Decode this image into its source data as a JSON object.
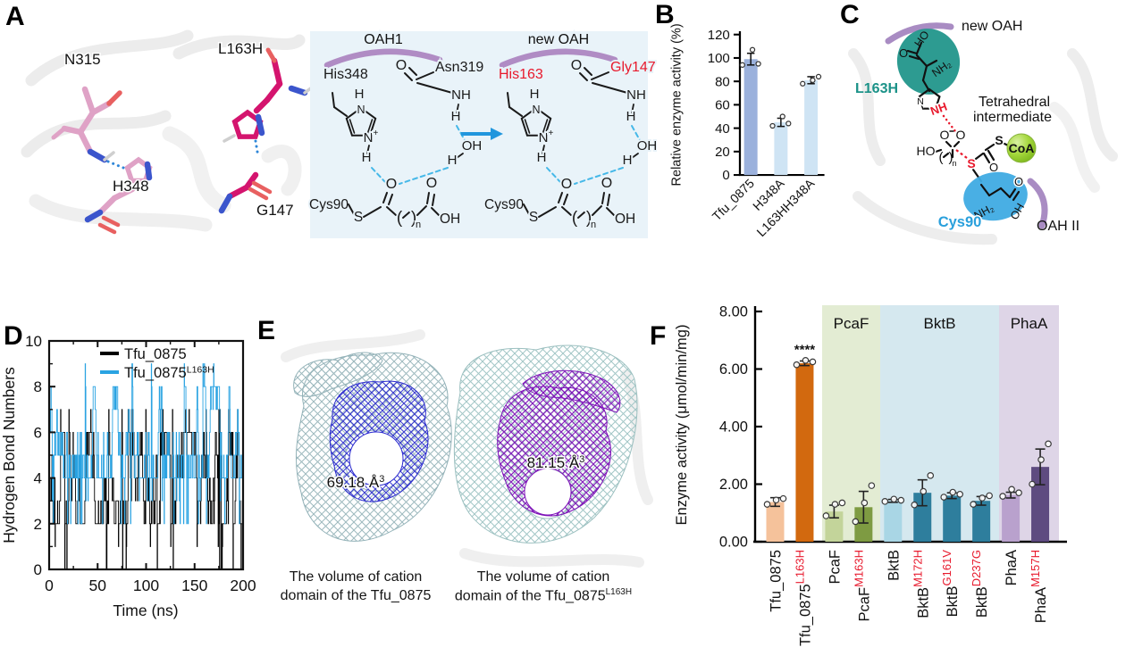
{
  "panels": {
    "a": "A",
    "b": "B",
    "c": "C",
    "d": "D",
    "e": "E",
    "f": "F"
  },
  "panel_a": {
    "structure": {
      "n315": "N315",
      "h348": "H348",
      "l163h": "L163H",
      "g147": "G147"
    },
    "scheme": {
      "bg": "#e9f3f9",
      "arc_color": "#b08cc4",
      "arrow_color": "#2196dd",
      "hbond_color": "#45b8e8",
      "left": {
        "arc_label": "OAH1",
        "res1": "His348",
        "res2": "Asn319",
        "res_color": "#1a1a1a"
      },
      "right": {
        "arc_label": "new OAH",
        "res1": "His163",
        "res2": "Gly147",
        "res_color": "#e8192c"
      },
      "atoms": {
        "o": "O",
        "nh": "NH",
        "h": "H",
        "oh": "OH",
        "n": "N",
        "plus": "+",
        "cys": "Cys90",
        "s": "S",
        "n_sub": "n"
      }
    }
  },
  "panel_c": {
    "labels": {
      "new_oah": "new OAH",
      "l163h": "L163H",
      "tetra1": "Tetrahedral",
      "tetra2": "intermediate",
      "coa": "CoA",
      "cys90": "Cys90",
      "oah2": "OAH II"
    },
    "atoms": {
      "ho": "HO",
      "o": "O",
      "nh2": "NH₂",
      "oh": "OH",
      "s_red": "S",
      "s_black": "S",
      "nh": "NH",
      "n_sub": "n",
      "o2": "O"
    },
    "colors": {
      "teal": "#1b9288",
      "blue": "#3fabe3",
      "green": "#a4d73c",
      "purple": "#a98cc3",
      "red": "#e8192c",
      "cys_text": "#2aa0dc"
    }
  },
  "panel_e": {
    "items": [
      {
        "volume_value": "69.18 Å",
        "volume_sup": "3",
        "caption1": "The volume of cation",
        "caption2": "domain of the Tfu_0875",
        "caption_sup": ""
      },
      {
        "volume_value": "81.15 Å",
        "volume_sup": "3",
        "caption1": "The volume of cation",
        "caption2": "domain of the Tfu_0875",
        "caption_sup": "L163H"
      }
    ]
  },
  "chart_data": [
    {
      "id": "B",
      "type": "bar",
      "ylabel": "Relative enzyme activity (%)",
      "ylim": [
        0,
        120
      ],
      "yticks": [
        0,
        20,
        40,
        60,
        80,
        100,
        120
      ],
      "categories": [
        "Tfu_0875",
        "H348A",
        "L163HH348A"
      ],
      "values": [
        99,
        45,
        81
      ],
      "errors": [
        5,
        3.5,
        3
      ],
      "points": [
        [
          94,
          107,
          95
        ],
        [
          42,
          50,
          44
        ],
        [
          78,
          81,
          84
        ]
      ],
      "bar_colors": [
        "#9bb1dc",
        "#cfe4f4",
        "#cfe4f4"
      ]
    },
    {
      "id": "D",
      "type": "line",
      "xlabel": "Time (ns)",
      "ylabel": "Hydrogen Bond Numbers",
      "xlim": [
        0,
        200
      ],
      "ylim": [
        0,
        10
      ],
      "xticks": [
        0,
        50,
        100,
        150,
        200
      ],
      "yticks": [
        0,
        2,
        4,
        6,
        8,
        10
      ],
      "legend_position": "top-right",
      "series": [
        {
          "name": "Tfu_0875",
          "sup": "",
          "color": "#000000",
          "typical_range": [
            2,
            6
          ],
          "extremes": [
            0,
            7
          ],
          "mean": 4
        },
        {
          "name": "Tfu_0875",
          "sup": "L163H",
          "color": "#2aa3e2",
          "typical_range": [
            4,
            8
          ],
          "extremes": [
            1,
            9
          ],
          "mean": 5.6
        }
      ],
      "note": "Dense MD trajectory of integer hydrogen-bond counts fluctuating rapidly over 0-200 ns; individual frames not resolvable, ranges estimated from plot."
    },
    {
      "id": "F",
      "type": "bar",
      "ylabel": "Enzyme activity (μmol/min/mg)",
      "ylim": [
        0,
        8
      ],
      "yticks": [
        "0.00",
        "2.00",
        "4.00",
        "6.00",
        "8.00"
      ],
      "categories": [
        {
          "base": "Tfu_0875",
          "sup": ""
        },
        {
          "base": "Tfu_0875",
          "sup": "L163H"
        },
        {
          "base": "PcaF",
          "sup": ""
        },
        {
          "base": "PcaF",
          "sup": "M163H"
        },
        {
          "base": "BktB",
          "sup": ""
        },
        {
          "base": "BktB",
          "sup": "M172H"
        },
        {
          "base": "BktB",
          "sup": "G161V"
        },
        {
          "base": "BktB",
          "sup": "D237G"
        },
        {
          "base": "PhaA",
          "sup": ""
        },
        {
          "base": "PhaA",
          "sup": "M157H"
        }
      ],
      "values": [
        1.38,
        6.2,
        1.05,
        1.2,
        1.42,
        1.7,
        1.6,
        1.42,
        1.62,
        2.6
      ],
      "errors": [
        0.15,
        0.08,
        0.22,
        0.55,
        0.05,
        0.45,
        0.1,
        0.15,
        0.1,
        0.62
      ],
      "points": [
        [
          1.3,
          1.45,
          1.5
        ],
        [
          6.15,
          6.3,
          6.25
        ],
        [
          0.9,
          1.3,
          1.35
        ],
        [
          0.7,
          1.35,
          1.95
        ],
        [
          1.4,
          1.48,
          1.44
        ],
        [
          1.28,
          1.75,
          2.3
        ],
        [
          1.55,
          1.72,
          1.65
        ],
        [
          1.3,
          1.52,
          1.6
        ],
        [
          1.58,
          1.82,
          1.7
        ],
        [
          2.0,
          2.85,
          3.4
        ]
      ],
      "bar_colors": [
        "#f5c29b",
        "#d2690f",
        "#c3d49a",
        "#7e9b42",
        "#a9d6e5",
        "#2e7e9d",
        "#2e7e9d",
        "#2e7e9d",
        "#b9a1cd",
        "#5e4b80"
      ],
      "groups": [
        {
          "label": "PcaF",
          "color": "#e3ecd3",
          "from": 2,
          "to": 3
        },
        {
          "label": "BktB",
          "color": "#d5e8ef",
          "from": 4,
          "to": 7
        },
        {
          "label": "PhaA",
          "color": "#ded5e7",
          "from": 8,
          "to": 9
        }
      ],
      "significance": [
        {
          "index": 1,
          "text": "****"
        }
      ],
      "sup_color": "#e8192c"
    }
  ],
  "render_hints": {
    "d_seed_black": 1337,
    "d_seed_blue": 2024,
    "d_steps": 560
  }
}
